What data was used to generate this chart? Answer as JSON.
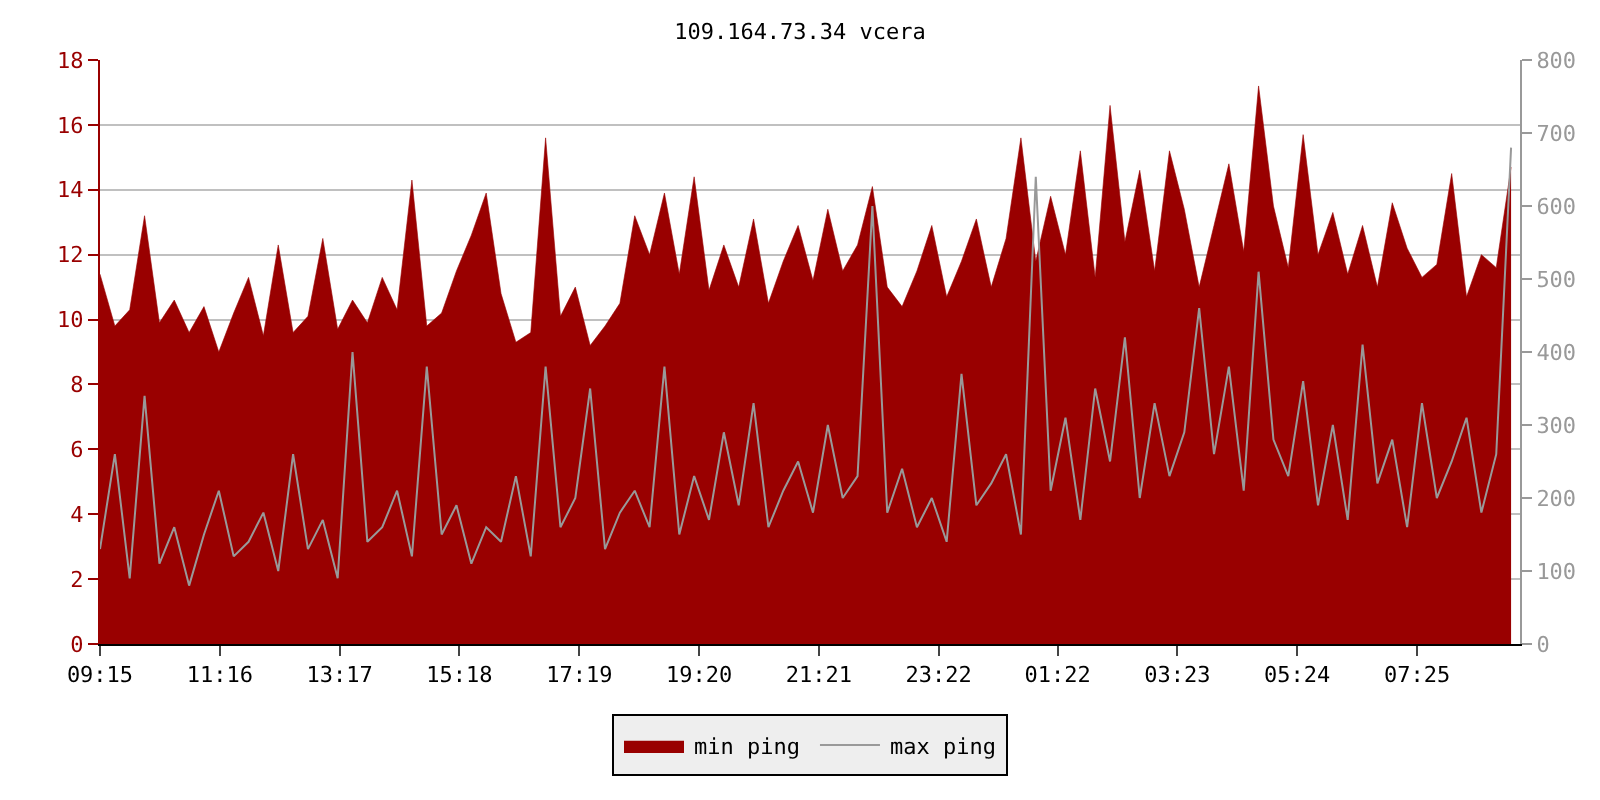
{
  "chart_data": {
    "type": "area",
    "title": "109.164.73.34 vcera",
    "x": [
      "--01-01T09:15",
      "--01-01T09:30",
      "--01-01T09:45",
      "--01-01T10:00",
      "--01-01T10:15",
      "--01-01T10:30",
      "--01-01T10:45",
      "--01-01T11:00",
      "--01-01T11:15",
      "--01-01T11:30",
      "--01-01T11:45",
      "--01-01T12:00",
      "--01-01T12:15",
      "--01-01T12:30",
      "--01-01T12:45",
      "--01-01T13:00",
      "--01-01T13:15",
      "--01-01T13:30",
      "--01-01T13:45",
      "--01-01T14:00",
      "--01-01T14:15",
      "--01-01T14:30",
      "--01-01T14:45",
      "--01-01T15:00",
      "--01-01T15:15",
      "--01-01T15:30",
      "--01-01T15:45",
      "--01-01T16:00",
      "--01-01T16:15",
      "--01-01T16:30",
      "--01-01T16:45",
      "--01-01T17:00",
      "--01-01T17:15",
      "--01-01T17:30",
      "--01-01T17:45",
      "--01-01T18:00",
      "--01-01T18:15",
      "--01-01T18:30",
      "--01-01T18:45",
      "--01-01T19:00",
      "--01-01T19:15",
      "--01-01T19:30",
      "--01-01T19:45",
      "--01-01T20:00",
      "--01-01T20:15",
      "--01-01T20:30",
      "--01-01T20:45",
      "--01-01T21:00",
      "--01-01T21:15",
      "--01-01T21:30",
      "--01-01T21:45",
      "--01-01T22:00",
      "--01-01T22:15",
      "--01-01T22:30",
      "--01-01T22:45",
      "--01-01T23:00",
      "--01-01T23:15",
      "--01-01T23:30",
      "--01-01T23:45",
      "--01-02T00:00",
      "--01-02T00:15",
      "--01-02T00:30",
      "--01-02T00:45",
      "--01-02T01:00",
      "--01-02T01:15",
      "--01-02T01:30",
      "--01-02T01:45",
      "--01-02T02:00",
      "--01-02T02:15",
      "--01-02T02:30",
      "--01-02T02:45",
      "--01-02T03:00",
      "--01-02T03:15",
      "--01-02T03:30",
      "--01-02T03:45",
      "--01-02T04:00",
      "--01-02T04:15",
      "--01-02T04:30",
      "--01-02T04:45",
      "--01-02T05:00",
      "--01-02T05:15",
      "--01-02T05:30",
      "--01-02T05:45",
      "--01-02T06:00",
      "--01-02T06:15",
      "--01-02T06:30",
      "--01-02T06:45",
      "--01-02T07:00",
      "--01-02T07:15",
      "--01-02T07:30",
      "--01-02T07:45",
      "--01-02T08:00",
      "--01-02T08:15",
      "--01-02T08:30",
      "--01-02T08:45",
      "--01-02T09:00"
    ],
    "series": [
      {
        "name": "min ping",
        "color": "#990000",
        "values": [
          11.4,
          9.8,
          10.3,
          13.2,
          9.9,
          10.6,
          9.6,
          10.4,
          9.0,
          10.2,
          11.3,
          9.5,
          12.3,
          9.6,
          10.1,
          12.5,
          9.7,
          10.6,
          9.9,
          11.3,
          10.3,
          14.3,
          9.8,
          10.2,
          11.5,
          12.6,
          13.9,
          10.8,
          9.3,
          9.6,
          15.6,
          10.1,
          11.0,
          9.2,
          9.8,
          10.5,
          13.2,
          12.0,
          13.9,
          11.4,
          14.4,
          10.9,
          12.3,
          11.0,
          13.1,
          10.5,
          11.8,
          12.9,
          11.2,
          13.4,
          11.5,
          12.3,
          14.1,
          11.0,
          10.4,
          11.5,
          12.9,
          10.7,
          11.8,
          13.1,
          11.0,
          12.5,
          15.6,
          11.8,
          13.8,
          12.0,
          15.2,
          11.3,
          16.6,
          12.4,
          14.6,
          11.5,
          15.2,
          13.4,
          11.0,
          12.9,
          14.8,
          12.1,
          17.2,
          13.5,
          11.6,
          15.7,
          12.0,
          13.3,
          11.4,
          12.9,
          11.0,
          13.6,
          12.2,
          11.3,
          11.7,
          14.5,
          10.7,
          12.0,
          11.6,
          14.7
        ]
      },
      {
        "name": "max ping",
        "type": "line",
        "axis": "y2",
        "color": "#999999",
        "values": [
          130,
          260,
          90,
          340,
          110,
          160,
          80,
          150,
          210,
          120,
          140,
          180,
          100,
          260,
          130,
          170,
          90,
          400,
          140,
          160,
          210,
          120,
          380,
          150,
          190,
          110,
          160,
          140,
          230,
          120,
          380,
          160,
          200,
          350,
          130,
          180,
          210,
          160,
          380,
          150,
          230,
          170,
          290,
          190,
          330,
          160,
          210,
          250,
          180,
          300,
          200,
          230,
          600,
          180,
          240,
          160,
          200,
          140,
          370,
          190,
          220,
          260,
          150,
          640,
          210,
          310,
          170,
          350,
          250,
          420,
          200,
          330,
          230,
          290,
          460,
          260,
          380,
          210,
          510,
          280,
          230,
          360,
          190,
          300,
          170,
          410,
          220,
          280,
          160,
          330,
          200,
          250,
          310,
          180,
          260,
          680
        ]
      }
    ],
    "xlim": [
      "--01-01T09:15",
      "--01-02T09:09"
    ],
    "xticks": [
      {
        "value": "--01-01T09:15",
        "label": "09:15"
      },
      {
        "value": "--01-01T11:16",
        "label": "11:16"
      },
      {
        "value": "--01-01T13:17",
        "label": "13:17"
      },
      {
        "value": "--01-01T15:18",
        "label": "15:18"
      },
      {
        "value": "--01-01T17:19",
        "label": "17:19"
      },
      {
        "value": "--01-01T19:20",
        "label": "19:20"
      },
      {
        "value": "--01-01T21:21",
        "label": "21:21"
      },
      {
        "value": "--01-01T23:22",
        "label": "23:22"
      },
      {
        "value": "--01-02T01:22",
        "label": "01:22"
      },
      {
        "value": "--01-02T03:23",
        "label": "03:23"
      },
      {
        "value": "--01-02T05:24",
        "label": "05:24"
      },
      {
        "value": "--01-02T07:25",
        "label": "07:25"
      }
    ],
    "ylim": [
      0,
      18
    ],
    "yticks": [
      0,
      2,
      4,
      6,
      8,
      10,
      12,
      14,
      16,
      18
    ],
    "y2lim": [
      0,
      800
    ],
    "y2ticks": [
      0,
      100,
      200,
      300,
      400,
      500,
      600,
      700,
      800
    ],
    "grid": "y",
    "legend": "bottom"
  }
}
